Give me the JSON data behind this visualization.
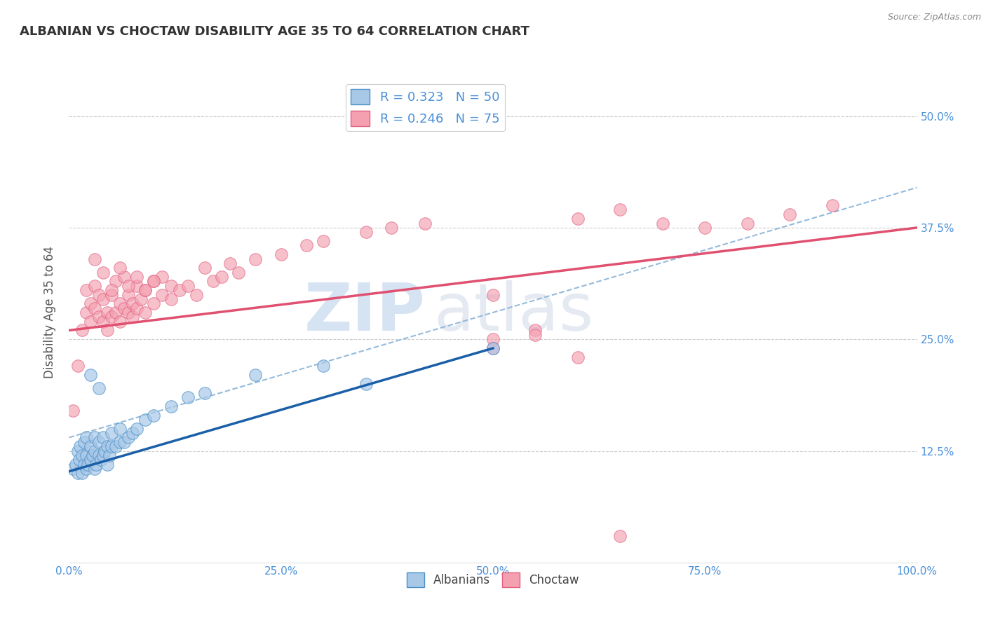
{
  "title": "ALBANIAN VS CHOCTAW DISABILITY AGE 35 TO 64 CORRELATION CHART",
  "source": "Source: ZipAtlas.com",
  "ylabel": "Disability Age 35 to 64",
  "xlim": [
    0,
    100
  ],
  "ylim": [
    0,
    56
  ],
  "xtick_labels": [
    "0.0%",
    "25.0%",
    "50.0%",
    "75.0%",
    "100.0%"
  ],
  "xtick_vals": [
    0,
    25,
    50,
    75,
    100
  ],
  "ytick_labels": [
    "12.5%",
    "25.0%",
    "37.5%",
    "50.0%"
  ],
  "ytick_vals": [
    12.5,
    25.0,
    37.5,
    50.0
  ],
  "albanian_color": "#a8c8e8",
  "albanian_edge": "#4a90c8",
  "choctaw_color": "#f4a0b0",
  "choctaw_edge": "#e06080",
  "trend_albanian_color": "#1a5fa8",
  "trend_choctaw_color": "#e05070",
  "dashed_line_color": "#8ab4d8",
  "legend_R_albanian": "0.323",
  "legend_N_albanian": "50",
  "legend_R_choctaw": "0.246",
  "legend_N_choctaw": "75",
  "watermark_zip": "ZIP",
  "watermark_atlas": "atlas",
  "background_color": "#ffffff",
  "grid_color": "#cccccc",
  "tick_color": "#4a90d9",
  "title_color": "#333333",
  "ylabel_color": "#555555",
  "albanian_x": [
    0.5,
    0.8,
    1.0,
    1.0,
    1.2,
    1.3,
    1.5,
    1.5,
    1.8,
    1.8,
    2.0,
    2.0,
    2.0,
    2.2,
    2.5,
    2.5,
    2.8,
    3.0,
    3.0,
    3.0,
    3.2,
    3.5,
    3.5,
    3.8,
    4.0,
    4.0,
    4.2,
    4.5,
    4.5,
    4.8,
    5.0,
    5.0,
    5.5,
    6.0,
    6.0,
    6.5,
    7.0,
    7.5,
    8.0,
    9.0,
    10.0,
    12.0,
    14.0,
    16.0,
    22.0,
    30.0,
    35.0,
    50.0,
    2.5,
    3.5
  ],
  "albanian_y": [
    10.5,
    11.0,
    10.0,
    12.5,
    11.5,
    13.0,
    10.0,
    12.0,
    11.0,
    13.5,
    10.5,
    12.0,
    14.0,
    11.0,
    11.5,
    13.0,
    12.0,
    10.5,
    12.5,
    14.0,
    11.0,
    12.0,
    13.5,
    11.5,
    12.0,
    14.0,
    12.5,
    11.0,
    13.0,
    12.0,
    13.0,
    14.5,
    13.0,
    13.5,
    15.0,
    13.5,
    14.0,
    14.5,
    15.0,
    16.0,
    16.5,
    17.5,
    18.5,
    19.0,
    21.0,
    22.0,
    20.0,
    24.0,
    21.0,
    19.5
  ],
  "choctaw_x": [
    0.5,
    1.0,
    1.5,
    2.0,
    2.0,
    2.5,
    2.5,
    3.0,
    3.0,
    3.5,
    3.5,
    4.0,
    4.0,
    4.5,
    4.5,
    5.0,
    5.0,
    5.5,
    5.5,
    6.0,
    6.0,
    6.5,
    6.5,
    7.0,
    7.0,
    7.5,
    7.5,
    8.0,
    8.0,
    8.5,
    9.0,
    9.0,
    10.0,
    10.0,
    11.0,
    11.0,
    12.0,
    12.0,
    13.0,
    14.0,
    15.0,
    16.0,
    17.0,
    18.0,
    19.0,
    20.0,
    22.0,
    25.0,
    28.0,
    30.0,
    35.0,
    38.0,
    42.0,
    50.0,
    50.0,
    55.0,
    60.0,
    65.0,
    70.0,
    75.0,
    80.0,
    85.0,
    90.0,
    3.0,
    4.0,
    5.0,
    6.0,
    7.0,
    8.0,
    9.0,
    10.0,
    50.0,
    55.0,
    60.0,
    65.0
  ],
  "choctaw_y": [
    17.0,
    22.0,
    26.0,
    28.0,
    30.5,
    27.0,
    29.0,
    28.5,
    31.0,
    27.5,
    30.0,
    27.0,
    29.5,
    26.0,
    28.0,
    27.5,
    30.0,
    28.0,
    31.5,
    27.0,
    29.0,
    28.5,
    32.0,
    28.0,
    30.0,
    27.5,
    29.0,
    28.5,
    31.0,
    29.5,
    28.0,
    30.5,
    29.0,
    31.5,
    30.0,
    32.0,
    29.5,
    31.0,
    30.5,
    31.0,
    30.0,
    33.0,
    31.5,
    32.0,
    33.5,
    32.5,
    34.0,
    34.5,
    35.5,
    36.0,
    37.0,
    37.5,
    38.0,
    30.0,
    25.0,
    26.0,
    38.5,
    39.5,
    38.0,
    37.5,
    38.0,
    39.0,
    40.0,
    34.0,
    32.5,
    30.5,
    33.0,
    31.0,
    32.0,
    30.5,
    31.5,
    24.0,
    25.5,
    23.0,
    3.0
  ],
  "alb_trend_x0": 0,
  "alb_trend_y0": 10.2,
  "alb_trend_x1": 50,
  "alb_trend_y1": 24.0,
  "choc_trend_x0": 0,
  "choc_trend_y0": 26.0,
  "choc_trend_x1": 100,
  "choc_trend_y1": 37.5,
  "dash_x0": 0,
  "dash_y0": 14.0,
  "dash_x1": 100,
  "dash_y1": 42.0
}
